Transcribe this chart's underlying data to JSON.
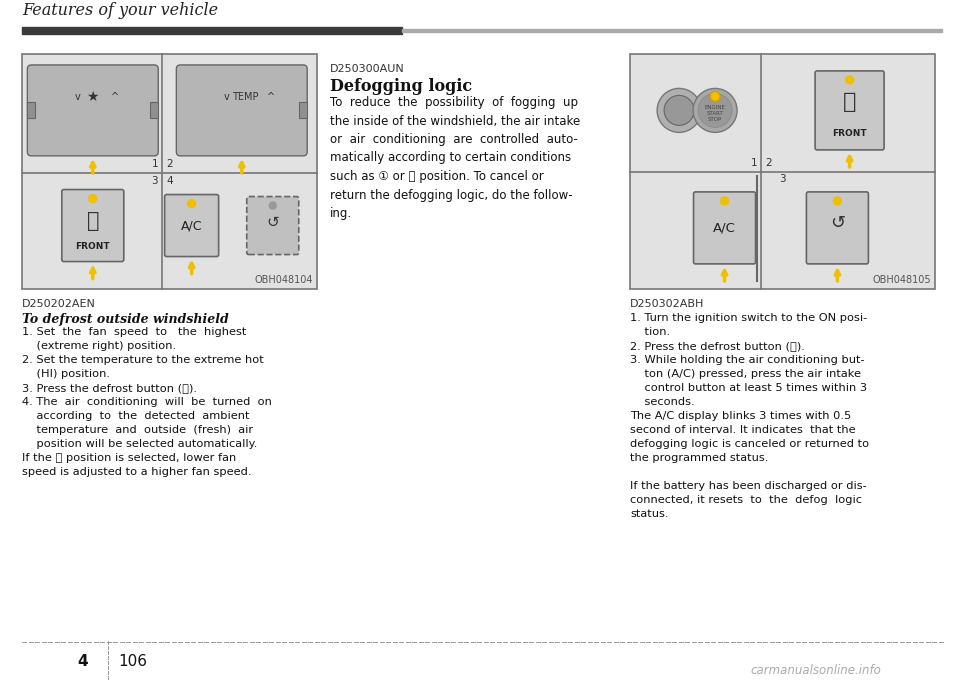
{
  "bg_color": "#ffffff",
  "header_title": "Features of your vehicle",
  "header_bar_dark": "#3a3a3a",
  "header_bar_light": "#aaaaaa",
  "page_chapter": "4",
  "page_num": "106",
  "footer_color": "#999999",
  "left_image_label": "D250202AEN",
  "left_title": "To defrost outside windshield",
  "left_body_lines": [
    "1. Set  the  fan  speed  to   the  highest",
    "    (extreme right) position.",
    "2. Set the temperature to the extreme hot",
    "    (HI) position.",
    "3. Press the defrost button (⒱).",
    "4. The  air  conditioning  will  be  turned  on",
    "    according  to  the  detected  ambient",
    "    temperature  and  outside  (fresh)  air",
    "    position will be selected automatically.",
    "If the ⒱ position is selected, lower fan",
    "speed is adjusted to a higher fan speed."
  ],
  "center_label": "D250300AUN",
  "center_title": "Defogging logic",
  "center_body_lines": [
    "To  reduce  the  possibility  of  fogging  up",
    "the inside of the windshield, the air intake",
    "or  air  conditioning  are  controlled  auto-",
    "matically according to certain conditions",
    "such as ① or ⒱ position. To cancel or",
    "return the defogging logic, do the follow-",
    "ing."
  ],
  "right_image_label": "D250302ABH",
  "right_body_lines": [
    "1. Turn the ignition switch to the ON posi-",
    "    tion.",
    "2. Press the defrost button (⒱).",
    "3. While holding the air conditioning but-",
    "    ton (A/C) pressed, press the air intake",
    "    control button at least 5 times within 3",
    "    seconds.",
    "The A/C display blinks 3 times with 0.5",
    "second of interval. It indicates  that the",
    "defogging logic is canceled or returned to",
    "the programmed status.",
    "",
    "If the battery has been discharged or dis-",
    "connected, it resets  to  the  defog  logic",
    "status."
  ],
  "obh1": "OBH048104",
  "obh2": "OBH048105",
  "img_bg": "#e2e2e2",
  "img_border": "#777777",
  "arrow_color": "#f0c000",
  "btn_bg": "#c8c8c8",
  "btn_border": "#666666",
  "watermark": "carmanualsonline.info"
}
